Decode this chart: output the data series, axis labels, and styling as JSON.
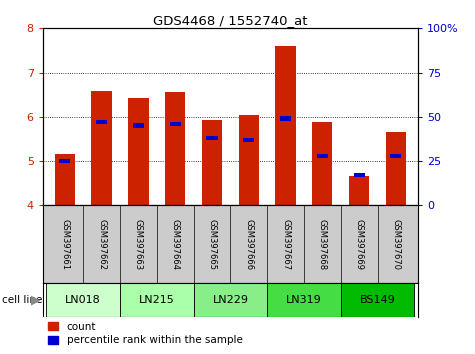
{
  "title": "GDS4468 / 1552740_at",
  "samples": [
    "GSM397661",
    "GSM397662",
    "GSM397663",
    "GSM397664",
    "GSM397665",
    "GSM397666",
    "GSM397667",
    "GSM397668",
    "GSM397669",
    "GSM397670"
  ],
  "count_values": [
    5.15,
    6.58,
    6.42,
    6.55,
    5.92,
    6.05,
    7.6,
    5.88,
    4.66,
    5.66
  ],
  "percentile_values": [
    25,
    47,
    45,
    46,
    38,
    37,
    49,
    28,
    17,
    28
  ],
  "cell_lines": [
    "LN018",
    "LN215",
    "LN229",
    "LN319",
    "BS149"
  ],
  "cell_line_spans": [
    [
      0,
      1
    ],
    [
      2,
      3
    ],
    [
      4,
      5
    ],
    [
      6,
      7
    ],
    [
      8,
      9
    ]
  ],
  "cell_line_colors": [
    "#ccffcc",
    "#aaffaa",
    "#88ee88",
    "#44dd44",
    "#00bb00"
  ],
  "ylim_left": [
    4,
    8
  ],
  "ylim_right": [
    0,
    100
  ],
  "yticks_left": [
    4,
    5,
    6,
    7,
    8
  ],
  "yticks_right": [
    0,
    25,
    50,
    75,
    100
  ],
  "ytick_labels_right": [
    "0",
    "25",
    "50",
    "75",
    "100%"
  ],
  "bar_color": "#cc2200",
  "percentile_color": "#0000cc",
  "bar_width": 0.55,
  "grid_color": "#000000",
  "bg_color": "#ffffff",
  "plot_bg": "#ffffff",
  "tick_label_color_left": "#cc2200",
  "tick_label_color_right": "#0000cc",
  "sample_label_bg": "#cccccc",
  "legend_count_label": "count",
  "legend_percentile_label": "percentile rank within the sample"
}
